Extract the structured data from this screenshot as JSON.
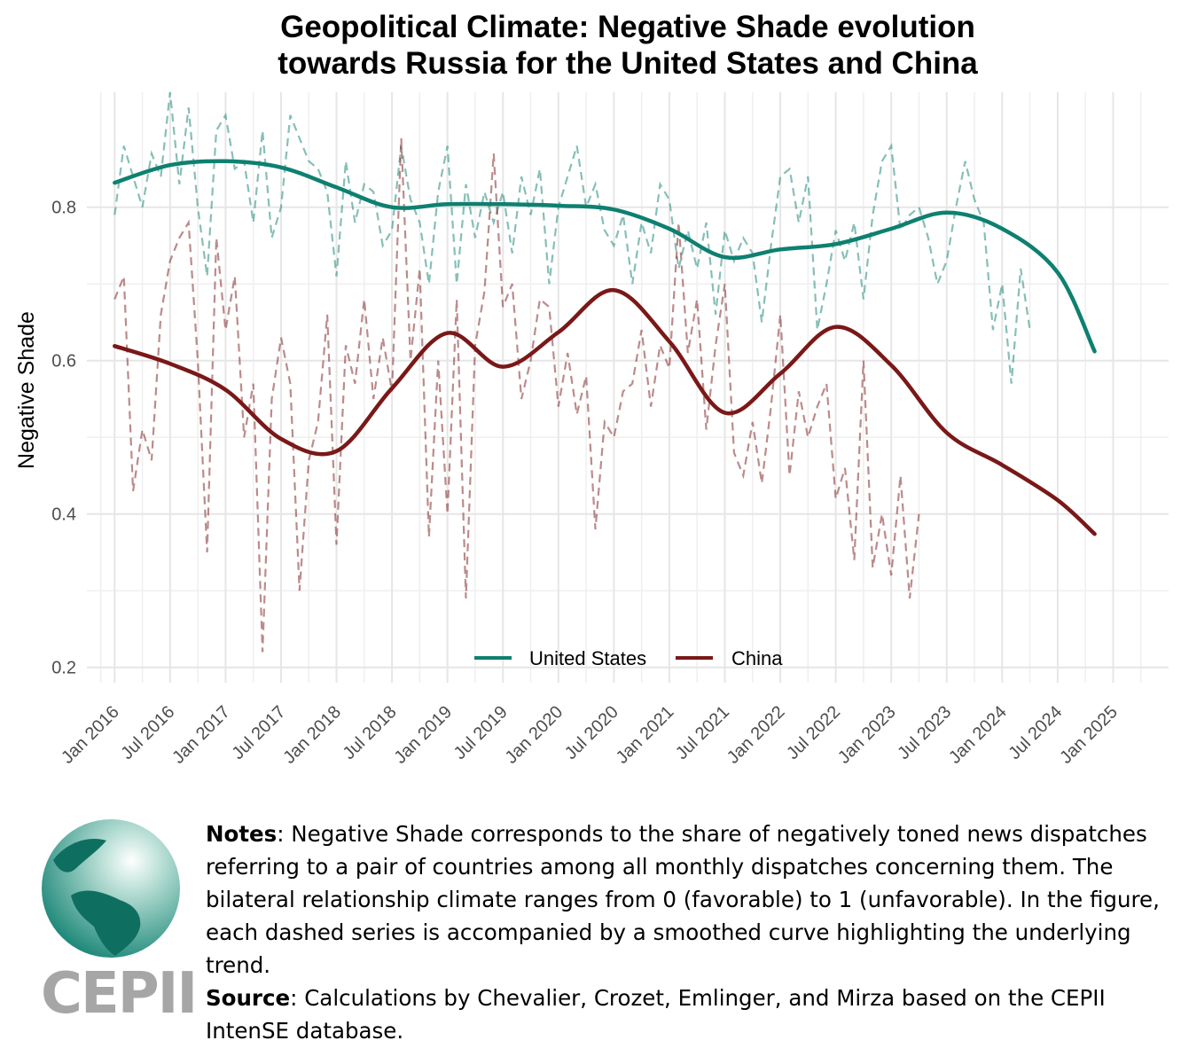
{
  "chart_data": {
    "type": "line",
    "title_lines": [
      "Geopolitical Climate: Negative Shade evolution",
      "towards Russia for the United States and China"
    ],
    "xlabel": "",
    "ylabel": "Negative Shade",
    "ylim": [
      0.18,
      0.95
    ],
    "yticks": [
      0.2,
      0.4,
      0.6,
      0.8
    ],
    "ytick_labels": [
      "0.2",
      "0.4",
      "0.6",
      "0.8"
    ],
    "xlim": [
      "2015-10-01",
      "2025-07-01"
    ],
    "xticks": [
      "2016-01-01",
      "2016-07-01",
      "2017-01-01",
      "2017-07-01",
      "2018-01-01",
      "2018-07-01",
      "2019-01-01",
      "2019-07-01",
      "2020-01-01",
      "2020-07-01",
      "2021-01-01",
      "2021-07-01",
      "2022-01-01",
      "2022-07-01",
      "2023-01-01",
      "2023-07-01",
      "2024-01-01",
      "2024-07-01",
      "2025-01-01"
    ],
    "xtick_labels": [
      "Jan 2016",
      "Jul 2016",
      "Jan 2017",
      "Jul 2017",
      "Jan 2018",
      "Jul 2018",
      "Jan 2019",
      "Jul 2019",
      "Jan 2020",
      "Jul 2020",
      "Jan 2021",
      "Jul 2021",
      "Jan 2022",
      "Jul 2022",
      "Jan 2023",
      "Jul 2023",
      "Jan 2024",
      "Jul 2024",
      "Jan 2025"
    ],
    "grid": true,
    "legend_position": "bottom-center inside",
    "series": [
      {
        "name": "United States",
        "color": "#0e8070",
        "smoothed": [
          [
            "2016-01",
            0.832
          ],
          [
            "2016-07",
            0.855
          ],
          [
            "2017-01",
            0.86
          ],
          [
            "2017-07",
            0.852
          ],
          [
            "2018-01",
            0.826
          ],
          [
            "2018-07",
            0.8
          ],
          [
            "2019-01",
            0.804
          ],
          [
            "2019-07",
            0.804
          ],
          [
            "2020-01",
            0.802
          ],
          [
            "2020-07",
            0.797
          ],
          [
            "2021-01",
            0.772
          ],
          [
            "2021-07",
            0.735
          ],
          [
            "2022-01",
            0.745
          ],
          [
            "2022-07",
            0.752
          ],
          [
            "2023-01",
            0.772
          ],
          [
            "2023-07",
            0.793
          ],
          [
            "2024-01",
            0.772
          ],
          [
            "2024-07",
            0.715
          ],
          [
            "2024-11",
            0.612
          ]
        ],
        "monthly": [
          [
            "2016-01",
            0.79
          ],
          [
            "2016-02",
            0.88
          ],
          [
            "2016-03",
            0.84
          ],
          [
            "2016-04",
            0.8
          ],
          [
            "2016-05",
            0.87
          ],
          [
            "2016-06",
            0.84
          ],
          [
            "2016-07",
            0.95
          ],
          [
            "2016-08",
            0.83
          ],
          [
            "2016-09",
            0.93
          ],
          [
            "2016-10",
            0.8
          ],
          [
            "2016-11",
            0.71
          ],
          [
            "2016-12",
            0.9
          ],
          [
            "2017-01",
            0.92
          ],
          [
            "2017-02",
            0.85
          ],
          [
            "2017-03",
            0.86
          ],
          [
            "2017-04",
            0.78
          ],
          [
            "2017-05",
            0.9
          ],
          [
            "2017-06",
            0.76
          ],
          [
            "2017-07",
            0.8
          ],
          [
            "2017-08",
            0.92
          ],
          [
            "2017-09",
            0.89
          ],
          [
            "2017-10",
            0.86
          ],
          [
            "2017-11",
            0.85
          ],
          [
            "2017-12",
            0.82
          ],
          [
            "2018-01",
            0.71
          ],
          [
            "2018-02",
            0.86
          ],
          [
            "2018-03",
            0.78
          ],
          [
            "2018-04",
            0.83
          ],
          [
            "2018-05",
            0.82
          ],
          [
            "2018-06",
            0.75
          ],
          [
            "2018-07",
            0.77
          ],
          [
            "2018-08",
            0.88
          ],
          [
            "2018-09",
            0.81
          ],
          [
            "2018-10",
            0.78
          ],
          [
            "2018-11",
            0.7
          ],
          [
            "2018-12",
            0.82
          ],
          [
            "2019-01",
            0.88
          ],
          [
            "2019-02",
            0.7
          ],
          [
            "2019-03",
            0.83
          ],
          [
            "2019-04",
            0.76
          ],
          [
            "2019-05",
            0.82
          ],
          [
            "2019-06",
            0.78
          ],
          [
            "2019-07",
            0.82
          ],
          [
            "2019-08",
            0.74
          ],
          [
            "2019-09",
            0.84
          ],
          [
            "2019-10",
            0.79
          ],
          [
            "2019-11",
            0.85
          ],
          [
            "2019-12",
            0.7
          ],
          [
            "2020-01",
            0.8
          ],
          [
            "2020-02",
            0.84
          ],
          [
            "2020-03",
            0.88
          ],
          [
            "2020-04",
            0.8
          ],
          [
            "2020-05",
            0.83
          ],
          [
            "2020-06",
            0.77
          ],
          [
            "2020-07",
            0.75
          ],
          [
            "2020-08",
            0.79
          ],
          [
            "2020-09",
            0.7
          ],
          [
            "2020-10",
            0.78
          ],
          [
            "2020-11",
            0.74
          ],
          [
            "2020-12",
            0.83
          ],
          [
            "2021-01",
            0.81
          ],
          [
            "2021-02",
            0.72
          ],
          [
            "2021-03",
            0.77
          ],
          [
            "2021-04",
            0.72
          ],
          [
            "2021-05",
            0.78
          ],
          [
            "2021-06",
            0.66
          ],
          [
            "2021-07",
            0.77
          ],
          [
            "2021-08",
            0.73
          ],
          [
            "2021-09",
            0.76
          ],
          [
            "2021-10",
            0.74
          ],
          [
            "2021-11",
            0.65
          ],
          [
            "2021-12",
            0.75
          ],
          [
            "2022-01",
            0.84
          ],
          [
            "2022-02",
            0.85
          ],
          [
            "2022-03",
            0.78
          ],
          [
            "2022-04",
            0.84
          ],
          [
            "2022-05",
            0.64
          ],
          [
            "2022-06",
            0.7
          ],
          [
            "2022-07",
            0.77
          ],
          [
            "2022-08",
            0.73
          ],
          [
            "2022-09",
            0.78
          ],
          [
            "2022-10",
            0.68
          ],
          [
            "2022-11",
            0.79
          ],
          [
            "2022-12",
            0.86
          ],
          [
            "2023-01",
            0.88
          ],
          [
            "2023-02",
            0.77
          ],
          [
            "2023-03",
            0.79
          ],
          [
            "2023-04",
            0.8
          ],
          [
            "2023-05",
            0.76
          ],
          [
            "2023-06",
            0.7
          ],
          [
            "2023-07",
            0.73
          ],
          [
            "2023-08",
            0.8
          ],
          [
            "2023-09",
            0.86
          ],
          [
            "2023-10",
            0.81
          ],
          [
            "2023-11",
            0.78
          ],
          [
            "2023-12",
            0.64
          ],
          [
            "2024-01",
            0.7
          ],
          [
            "2024-02",
            0.57
          ],
          [
            "2024-03",
            0.72
          ],
          [
            "2024-04",
            0.64
          ]
        ]
      },
      {
        "name": "China",
        "color": "#7a1818",
        "smoothed": [
          [
            "2016-01",
            0.619
          ],
          [
            "2016-07",
            0.596
          ],
          [
            "2017-01",
            0.562
          ],
          [
            "2017-07",
            0.498
          ],
          [
            "2018-01",
            0.482
          ],
          [
            "2018-07",
            0.564
          ],
          [
            "2019-01",
            0.636
          ],
          [
            "2019-07",
            0.592
          ],
          [
            "2020-01",
            0.637
          ],
          [
            "2020-07",
            0.692
          ],
          [
            "2021-01",
            0.625
          ],
          [
            "2021-07",
            0.532
          ],
          [
            "2022-01",
            0.583
          ],
          [
            "2022-07",
            0.644
          ],
          [
            "2023-01",
            0.594
          ],
          [
            "2023-07",
            0.506
          ],
          [
            "2024-01",
            0.464
          ],
          [
            "2024-07",
            0.418
          ],
          [
            "2024-11",
            0.374
          ]
        ],
        "monthly": [
          [
            "2016-01",
            0.68
          ],
          [
            "2016-02",
            0.71
          ],
          [
            "2016-03",
            0.43
          ],
          [
            "2016-04",
            0.51
          ],
          [
            "2016-05",
            0.47
          ],
          [
            "2016-06",
            0.66
          ],
          [
            "2016-07",
            0.73
          ],
          [
            "2016-08",
            0.76
          ],
          [
            "2016-09",
            0.78
          ],
          [
            "2016-10",
            0.6
          ],
          [
            "2016-11",
            0.35
          ],
          [
            "2016-12",
            0.76
          ],
          [
            "2017-01",
            0.64
          ],
          [
            "2017-02",
            0.71
          ],
          [
            "2017-03",
            0.5
          ],
          [
            "2017-04",
            0.57
          ],
          [
            "2017-05",
            0.22
          ],
          [
            "2017-06",
            0.55
          ],
          [
            "2017-07",
            0.63
          ],
          [
            "2017-08",
            0.57
          ],
          [
            "2017-09",
            0.3
          ],
          [
            "2017-10",
            0.47
          ],
          [
            "2017-11",
            0.52
          ],
          [
            "2017-12",
            0.66
          ],
          [
            "2018-01",
            0.36
          ],
          [
            "2018-02",
            0.62
          ],
          [
            "2018-03",
            0.57
          ],
          [
            "2018-04",
            0.68
          ],
          [
            "2018-05",
            0.55
          ],
          [
            "2018-06",
            0.63
          ],
          [
            "2018-07",
            0.56
          ],
          [
            "2018-08",
            0.89
          ],
          [
            "2018-09",
            0.6
          ],
          [
            "2018-10",
            0.72
          ],
          [
            "2018-11",
            0.37
          ],
          [
            "2018-12",
            0.6
          ],
          [
            "2019-01",
            0.4
          ],
          [
            "2019-02",
            0.68
          ],
          [
            "2019-03",
            0.29
          ],
          [
            "2019-04",
            0.62
          ],
          [
            "2019-05",
            0.69
          ],
          [
            "2019-06",
            0.87
          ],
          [
            "2019-07",
            0.67
          ],
          [
            "2019-08",
            0.7
          ],
          [
            "2019-09",
            0.55
          ],
          [
            "2019-10",
            0.6
          ],
          [
            "2019-11",
            0.68
          ],
          [
            "2019-12",
            0.67
          ],
          [
            "2020-01",
            0.54
          ],
          [
            "2020-02",
            0.61
          ],
          [
            "2020-03",
            0.53
          ],
          [
            "2020-04",
            0.58
          ],
          [
            "2020-05",
            0.38
          ],
          [
            "2020-06",
            0.52
          ],
          [
            "2020-07",
            0.5
          ],
          [
            "2020-08",
            0.56
          ],
          [
            "2020-09",
            0.57
          ],
          [
            "2020-10",
            0.64
          ],
          [
            "2020-11",
            0.54
          ],
          [
            "2020-12",
            0.62
          ],
          [
            "2021-01",
            0.59
          ],
          [
            "2021-02",
            0.78
          ],
          [
            "2021-03",
            0.61
          ],
          [
            "2021-04",
            0.68
          ],
          [
            "2021-05",
            0.51
          ],
          [
            "2021-06",
            0.62
          ],
          [
            "2021-07",
            0.7
          ],
          [
            "2021-08",
            0.48
          ],
          [
            "2021-09",
            0.45
          ],
          [
            "2021-10",
            0.52
          ],
          [
            "2021-11",
            0.44
          ],
          [
            "2021-12",
            0.54
          ],
          [
            "2022-01",
            0.66
          ],
          [
            "2022-02",
            0.45
          ],
          [
            "2022-03",
            0.56
          ],
          [
            "2022-04",
            0.5
          ],
          [
            "2022-05",
            0.54
          ],
          [
            "2022-06",
            0.57
          ],
          [
            "2022-07",
            0.42
          ],
          [
            "2022-08",
            0.46
          ],
          [
            "2022-09",
            0.34
          ],
          [
            "2022-10",
            0.6
          ],
          [
            "2022-11",
            0.33
          ],
          [
            "2022-12",
            0.4
          ],
          [
            "2023-01",
            0.32
          ],
          [
            "2023-02",
            0.45
          ],
          [
            "2023-03",
            0.29
          ],
          [
            "2023-04",
            0.4
          ]
        ]
      }
    ]
  },
  "notes": {
    "notes_label": "Notes",
    "notes_text": ": Negative Shade corresponds to the share of negatively toned news dispatches referring to a pair of countries among all monthly dispatches concerning them. The bilateral relationship climate ranges from 0 (favorable) to 1 (unfavorable). In the figure, each dashed series is accompanied by a smoothed curve highlighting the underlying trend.",
    "source_label": "Source",
    "source_text": ": Calculations by Chevalier, Crozet, Emlinger, and Mirza based on the CEPII IntenSE database."
  },
  "logo": {
    "text": "CEPII",
    "brand_color": "#0e8070",
    "text_color": "#a6a6a6"
  }
}
